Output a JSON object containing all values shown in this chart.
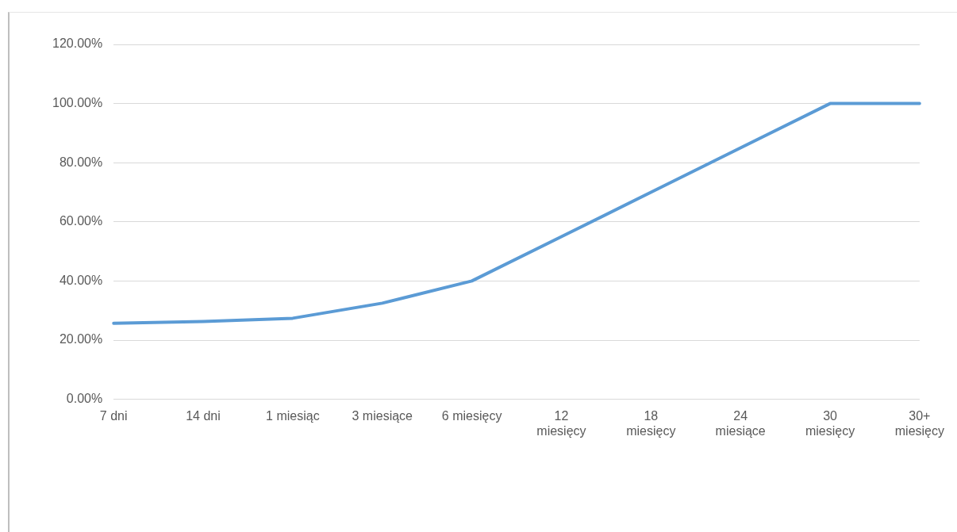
{
  "chart_data": {
    "type": "line",
    "categories": [
      "7 dni",
      "14 dni",
      "1 miesiąc",
      "3 miesiące",
      "6 miesięcy",
      "12\nmiesięcy",
      "18\nmiesięcy",
      "24\nmiesiące",
      "30\nmiesięcy",
      "30+\nmiesięcy"
    ],
    "series": [
      {
        "color": "#5b9bd5",
        "values": [
          25.7,
          26.3,
          27.4,
          32.5,
          40,
          55,
          70,
          85,
          100,
          100
        ]
      }
    ],
    "ylim": [
      0,
      120
    ],
    "yticks": [
      {
        "value": 0,
        "label": "0.00%"
      },
      {
        "value": 20,
        "label": "20.00%"
      },
      {
        "value": 40,
        "label": "40.00%"
      },
      {
        "value": 60,
        "label": "60.00%"
      },
      {
        "value": 80,
        "label": "80.00%"
      },
      {
        "value": 100,
        "label": "100.00%"
      },
      {
        "value": 120,
        "label": "120.00%"
      }
    ],
    "grid": "y",
    "legend": false,
    "marker": "none",
    "line_style": "solid"
  }
}
